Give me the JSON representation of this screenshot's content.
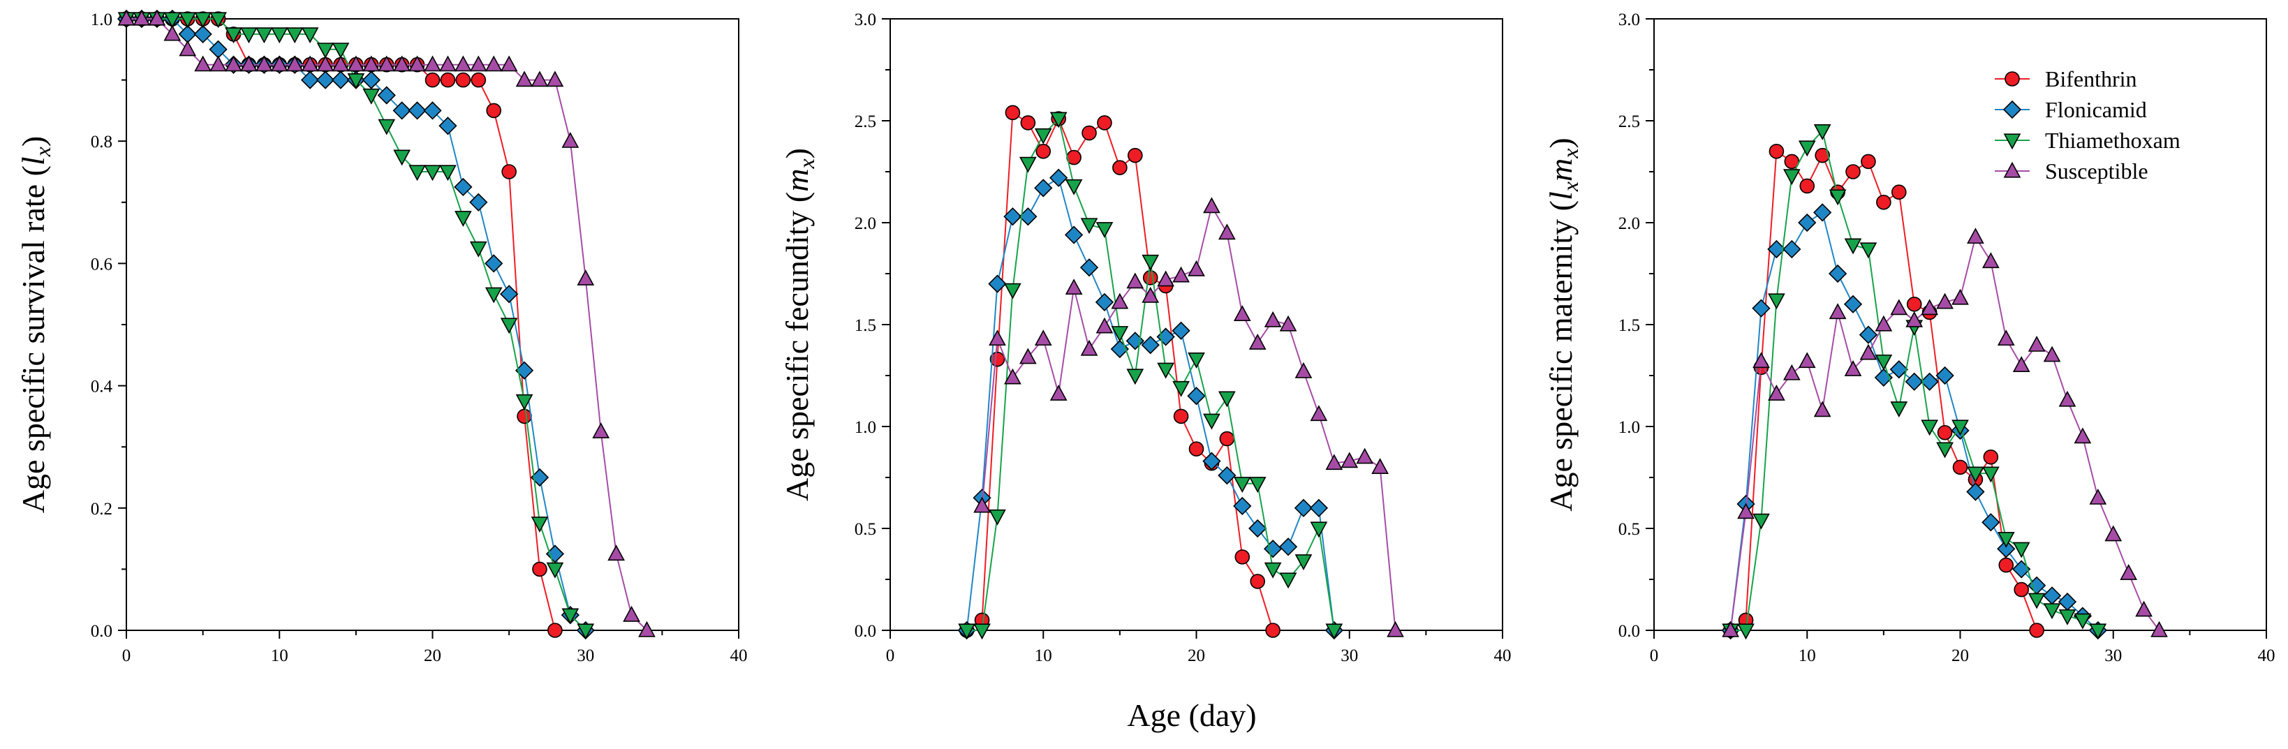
{
  "shared_xlabel": "Age (day)",
  "series_styles": [
    {
      "name": "Bifenthrin",
      "color": "#ee1c24",
      "marker": "circle"
    },
    {
      "name": "Flonicamid",
      "color": "#1f86c6",
      "marker": "diamond"
    },
    {
      "name": "Thiamethoxam",
      "color": "#17a34a",
      "marker": "triangle-down"
    },
    {
      "name": "Susceptible",
      "color": "#a64ca6",
      "marker": "triangle-up"
    }
  ],
  "chart_data": [
    {
      "type": "line",
      "title": "",
      "xlabel": "Age (day)",
      "ylabel": {
        "prefix": "Age specific survival rate (",
        "main": "l",
        "sub": "x",
        "suffix": ")"
      },
      "xlim": [
        0,
        40
      ],
      "ylim": [
        0,
        1.0
      ],
      "xticks": [
        0,
        10,
        20,
        30,
        40
      ],
      "yticks": [
        "0.0",
        "0.2",
        "0.4",
        "0.6",
        "0.8",
        "1.0"
      ],
      "legend": "none",
      "series": [
        {
          "name": "Bifenthrin",
          "x": [
            0,
            1,
            2,
            3,
            4,
            5,
            6,
            7,
            8,
            9,
            10,
            11,
            12,
            13,
            14,
            15,
            16,
            17,
            18,
            19,
            20,
            21,
            22,
            23,
            24,
            25,
            26,
            27,
            28
          ],
          "values": [
            1,
            1,
            1,
            1,
            1,
            1,
            1,
            0.975,
            0.925,
            0.925,
            0.925,
            0.925,
            0.925,
            0.925,
            0.925,
            0.925,
            0.925,
            0.925,
            0.925,
            0.925,
            0.9,
            0.9,
            0.9,
            0.9,
            0.85,
            0.75,
            0.35,
            0.1,
            0
          ]
        },
        {
          "name": "Flonicamid",
          "x": [
            0,
            1,
            2,
            3,
            4,
            5,
            6,
            7,
            8,
            9,
            10,
            11,
            12,
            13,
            14,
            15,
            16,
            17,
            18,
            19,
            20,
            21,
            22,
            23,
            24,
            25,
            26,
            27,
            28,
            29,
            30
          ],
          "values": [
            1,
            1,
            1,
            1,
            0.975,
            0.975,
            0.95,
            0.925,
            0.925,
            0.925,
            0.925,
            0.925,
            0.9,
            0.9,
            0.9,
            0.9,
            0.9,
            0.875,
            0.85,
            0.85,
            0.85,
            0.825,
            0.725,
            0.7,
            0.6,
            0.55,
            0.425,
            0.25,
            0.125,
            0.025,
            0
          ]
        },
        {
          "name": "Thiamethoxam",
          "x": [
            0,
            1,
            2,
            3,
            4,
            5,
            6,
            7,
            8,
            9,
            10,
            11,
            12,
            13,
            14,
            15,
            16,
            17,
            18,
            19,
            20,
            21,
            22,
            23,
            24,
            25,
            26,
            27,
            28,
            29,
            30
          ],
          "values": [
            1,
            1,
            1,
            1,
            1,
            1,
            1,
            0.975,
            0.975,
            0.975,
            0.975,
            0.975,
            0.975,
            0.95,
            0.95,
            0.9,
            0.875,
            0.825,
            0.775,
            0.75,
            0.75,
            0.75,
            0.675,
            0.625,
            0.55,
            0.5,
            0.375,
            0.175,
            0.1,
            0.025,
            0
          ]
        },
        {
          "name": "Susceptible",
          "x": [
            0,
            1,
            2,
            3,
            4,
            5,
            6,
            7,
            8,
            9,
            10,
            11,
            12,
            13,
            14,
            15,
            16,
            17,
            18,
            19,
            20,
            21,
            22,
            23,
            24,
            25,
            26,
            27,
            28,
            29,
            30,
            31,
            32,
            33,
            34
          ],
          "values": [
            1,
            1,
            1,
            0.975,
            0.95,
            0.925,
            0.925,
            0.925,
            0.925,
            0.925,
            0.925,
            0.925,
            0.925,
            0.925,
            0.925,
            0.925,
            0.925,
            0.925,
            0.925,
            0.925,
            0.925,
            0.925,
            0.925,
            0.925,
            0.925,
            0.925,
            0.9,
            0.9,
            0.9,
            0.8,
            0.575,
            0.325,
            0.125,
            0.025,
            0
          ]
        }
      ]
    },
    {
      "type": "line",
      "title": "",
      "xlabel": "Age (day)",
      "ylabel": {
        "prefix": "Age specific fecundity (",
        "main": "m",
        "sub": "x",
        "suffix": ")"
      },
      "xlim": [
        0,
        40
      ],
      "ylim": [
        0,
        3.0
      ],
      "xticks": [
        0,
        10,
        20,
        30,
        40
      ],
      "yticks": [
        "0.0",
        "0.5",
        "1.0",
        "1.5",
        "2.0",
        "2.5",
        "3.0"
      ],
      "legend": "none",
      "series": [
        {
          "name": "Bifenthrin",
          "x": [
            5,
            6,
            7,
            8,
            9,
            10,
            11,
            12,
            13,
            14,
            15,
            16,
            17,
            18,
            19,
            20,
            21,
            22,
            23,
            24,
            25
          ],
          "values": [
            0,
            0.05,
            1.33,
            2.54,
            2.49,
            2.35,
            2.51,
            2.32,
            2.44,
            2.49,
            2.27,
            2.33,
            1.73,
            1.69,
            1.05,
            0.89,
            0.82,
            0.94,
            0.36,
            0.24,
            0
          ]
        },
        {
          "name": "Flonicamid",
          "x": [
            5,
            6,
            7,
            8,
            9,
            10,
            11,
            12,
            13,
            14,
            15,
            16,
            17,
            18,
            19,
            20,
            21,
            22,
            23,
            24,
            25,
            26,
            27,
            28,
            29
          ],
          "values": [
            0,
            0.65,
            1.7,
            2.03,
            2.03,
            2.17,
            2.22,
            1.94,
            1.78,
            1.61,
            1.38,
            1.42,
            1.4,
            1.44,
            1.47,
            1.15,
            0.83,
            0.76,
            0.61,
            0.5,
            0.4,
            0.41,
            0.6,
            0.6,
            0
          ]
        },
        {
          "name": "Thiamethoxam",
          "x": [
            5,
            6,
            7,
            8,
            9,
            10,
            11,
            12,
            13,
            14,
            15,
            16,
            17,
            18,
            19,
            20,
            21,
            22,
            23,
            24,
            25,
            26,
            27,
            28,
            29
          ],
          "values": [
            0,
            0,
            0.56,
            1.67,
            2.29,
            2.43,
            2.51,
            2.18,
            1.99,
            1.97,
            1.46,
            1.25,
            1.81,
            1.28,
            1.19,
            1.33,
            1.03,
            1.14,
            0.72,
            0.72,
            0.3,
            0.25,
            0.34,
            0.5,
            0
          ]
        },
        {
          "name": "Susceptible",
          "x": [
            6,
            7,
            8,
            9,
            10,
            11,
            12,
            13,
            14,
            15,
            16,
            17,
            18,
            19,
            20,
            21,
            22,
            23,
            24,
            25,
            26,
            27,
            28,
            29,
            30,
            31,
            32,
            33
          ],
          "values": [
            0.61,
            1.43,
            1.24,
            1.34,
            1.43,
            1.16,
            1.68,
            1.38,
            1.49,
            1.61,
            1.71,
            1.64,
            1.72,
            1.74,
            1.77,
            2.08,
            1.95,
            1.55,
            1.41,
            1.52,
            1.5,
            1.27,
            1.06,
            0.82,
            0.83,
            0.85,
            0.8,
            0
          ]
        }
      ]
    },
    {
      "type": "line",
      "title": "",
      "xlabel": "Age (day)",
      "ylabel": {
        "prefix": "Age specific maternity (",
        "main": "l",
        "sub": "x",
        "main2": "m",
        "sub2": "x",
        "suffix": ")"
      },
      "xlim": [
        0,
        40
      ],
      "ylim": [
        0,
        3.0
      ],
      "xticks": [
        0,
        10,
        20,
        30,
        40
      ],
      "yticks": [
        "0.0",
        "0.5",
        "1.0",
        "1.5",
        "2.0",
        "2.5",
        "3.0"
      ],
      "legend": "top-right",
      "series": [
        {
          "name": "Bifenthrin",
          "x": [
            5,
            6,
            7,
            8,
            9,
            10,
            11,
            12,
            13,
            14,
            15,
            16,
            17,
            18,
            19,
            20,
            21,
            22,
            23,
            24,
            25
          ],
          "values": [
            0,
            0.05,
            1.29,
            2.35,
            2.3,
            2.18,
            2.33,
            2.15,
            2.25,
            2.3,
            2.1,
            2.15,
            1.6,
            1.56,
            0.97,
            0.8,
            0.74,
            0.85,
            0.32,
            0.2,
            0
          ]
        },
        {
          "name": "Flonicamid",
          "x": [
            5,
            6,
            7,
            8,
            9,
            10,
            11,
            12,
            13,
            14,
            15,
            16,
            17,
            18,
            19,
            20,
            21,
            22,
            23,
            24,
            25,
            26,
            27,
            28,
            29
          ],
          "values": [
            0,
            0.62,
            1.58,
            1.87,
            1.87,
            2.0,
            2.05,
            1.75,
            1.6,
            1.45,
            1.24,
            1.28,
            1.22,
            1.22,
            1.25,
            0.98,
            0.68,
            0.53,
            0.4,
            0.3,
            0.22,
            0.17,
            0.14,
            0.07,
            0
          ]
        },
        {
          "name": "Thiamethoxam",
          "x": [
            5,
            6,
            7,
            8,
            9,
            10,
            11,
            12,
            13,
            14,
            15,
            16,
            17,
            18,
            19,
            20,
            21,
            22,
            23,
            24,
            25,
            26,
            27,
            28,
            29
          ],
          "values": [
            0,
            0,
            0.54,
            1.62,
            2.23,
            2.37,
            2.45,
            2.13,
            1.89,
            1.87,
            1.32,
            1.09,
            1.49,
            1.0,
            0.89,
            1.0,
            0.77,
            0.77,
            0.45,
            0.4,
            0.15,
            0.1,
            0.07,
            0.05,
            0
          ]
        },
        {
          "name": "Susceptible",
          "x": [
            5,
            6,
            7,
            8,
            9,
            10,
            11,
            12,
            13,
            14,
            15,
            16,
            17,
            18,
            19,
            20,
            21,
            22,
            23,
            24,
            25,
            26,
            27,
            28,
            29,
            30,
            31,
            32,
            33
          ],
          "values": [
            0,
            0.58,
            1.32,
            1.16,
            1.26,
            1.32,
            1.08,
            1.56,
            1.28,
            1.36,
            1.5,
            1.58,
            1.52,
            1.58,
            1.61,
            1.63,
            1.93,
            1.81,
            1.43,
            1.3,
            1.4,
            1.35,
            1.13,
            0.95,
            0.65,
            0.47,
            0.28,
            0.1,
            0
          ]
        }
      ]
    }
  ]
}
